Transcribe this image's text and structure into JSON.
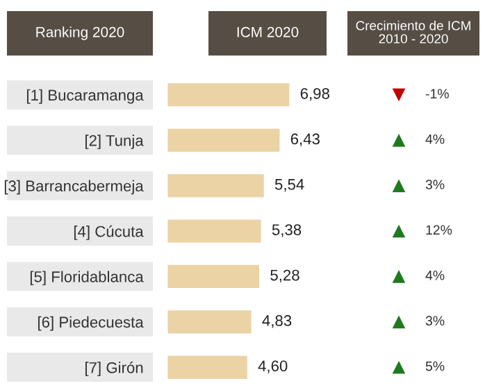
{
  "chart_data": {
    "type": "bar",
    "orientation": "horizontal",
    "categories": [
      "[1] Bucaramanga",
      "[2] Tunja",
      "[3] Barrancabermeja",
      "[4] Cúcuta",
      "[5] Floridablanca",
      "[6] Piedecuesta",
      "[7] Girón"
    ],
    "values": [
      6.98,
      6.43,
      5.54,
      5.38,
      5.28,
      4.83,
      4.6
    ],
    "value_labels": [
      "6,98",
      "6,43",
      "5,54",
      "5,38",
      "5,28",
      "4,83",
      "4,60"
    ],
    "color": "#ebd3a6",
    "tick_labels": "y",
    "grid": false,
    "legend": false,
    "annotations": [
      "Ranking 2020",
      "ICM 2020",
      "Crecimiento de ICM\n2010 - 2020",
      "-1%",
      "4%",
      "3%",
      "12%",
      "4%",
      "3%",
      "5%"
    ]
  }
}
